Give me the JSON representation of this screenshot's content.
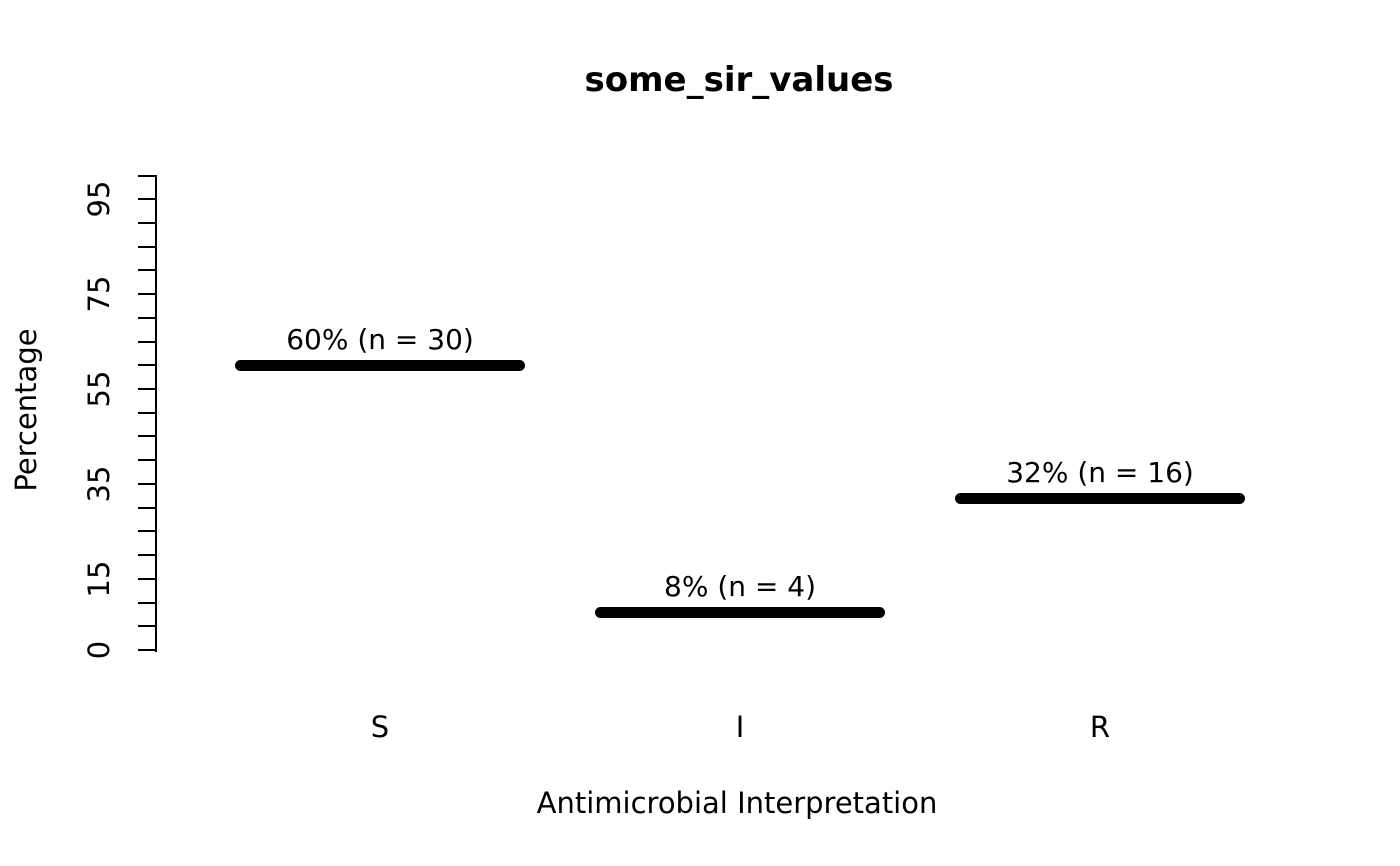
{
  "title": "some_sir_values",
  "chart_data": {
    "type": "bar",
    "title": "some_sir_values",
    "xlabel": "Antimicrobial Interpretation",
    "ylabel": "Percentage",
    "categories": [
      "S",
      "I",
      "R"
    ],
    "values": [
      60,
      8,
      32
    ],
    "counts": [
      30,
      4,
      16
    ],
    "point_labels": [
      "60% (n = 30)",
      "8% (n = 4)",
      "32% (n = 16)"
    ],
    "ylim": [
      0,
      100
    ],
    "y_tick_step": 5,
    "y_labeled_ticks": [
      0,
      15,
      35,
      55,
      75,
      95
    ],
    "grid": false,
    "legend_position": "none",
    "bar_color": "#000000",
    "text_color": "#000000",
    "background_color": "#ffffff"
  }
}
